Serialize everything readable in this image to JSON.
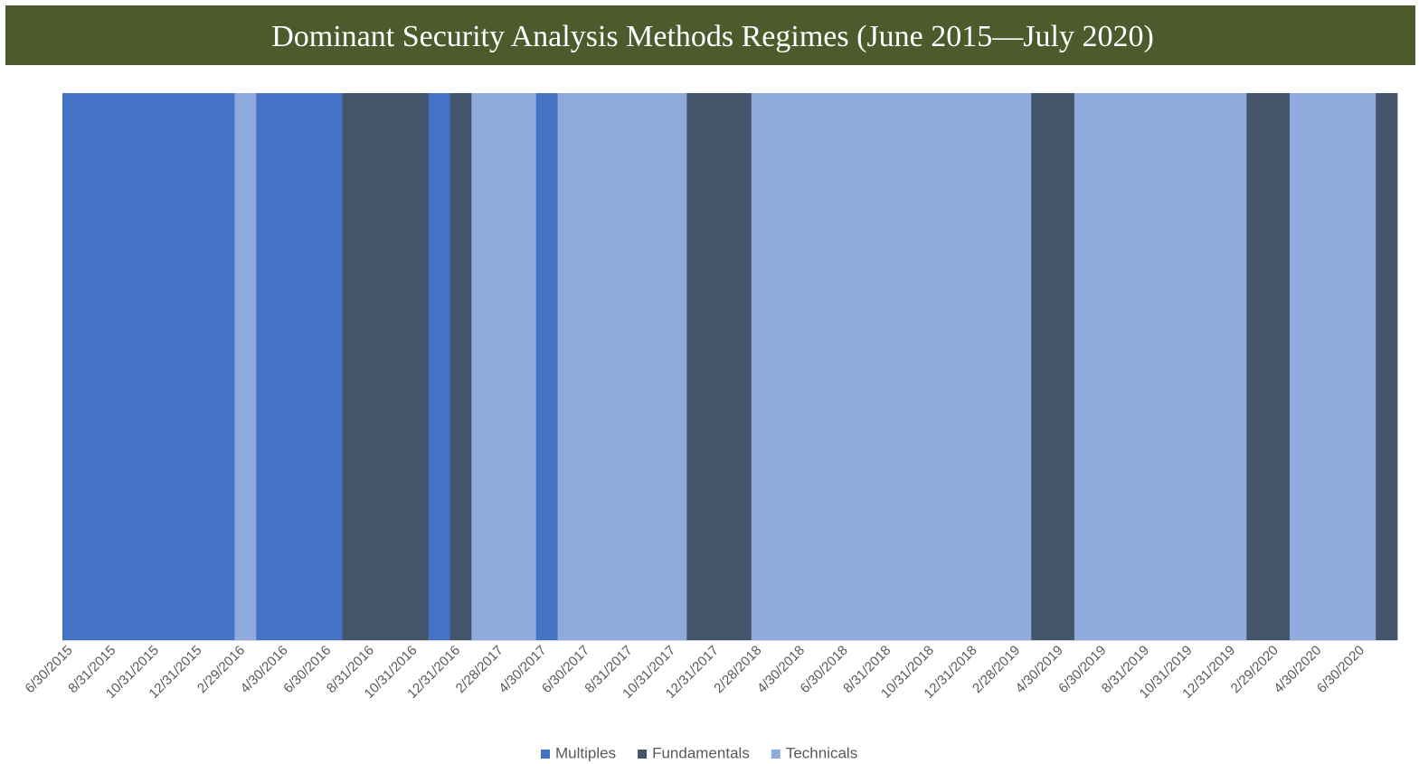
{
  "chart_data": {
    "type": "bar",
    "stacked": true,
    "title": "Dominant Security Analysis Methods Regimes (June 2015—July 2020)",
    "categories": [
      "6/30/2015",
      null,
      "8/31/2015",
      null,
      "10/31/2015",
      null,
      "12/31/2015",
      null,
      "2/29/2016",
      null,
      "4/30/2016",
      null,
      "6/30/2016",
      null,
      "8/31/2016",
      null,
      "10/31/2016",
      null,
      "12/31/2016",
      null,
      "2/28/2017",
      null,
      "4/30/2017",
      null,
      "6/30/2017",
      null,
      "8/31/2017",
      null,
      "10/31/2017",
      null,
      "12/31/2017",
      null,
      "2/28/2018",
      null,
      "4/30/2018",
      null,
      "6/30/2018",
      null,
      "8/31/2018",
      null,
      "10/31/2018",
      null,
      "12/31/2018",
      null,
      "2/28/2019",
      null,
      "4/30/2019",
      null,
      "6/30/2019",
      null,
      "8/31/2019",
      null,
      "10/31/2019",
      null,
      "12/31/2019",
      null,
      "2/29/2020",
      null,
      "4/30/2020",
      null,
      "6/30/2020",
      null
    ],
    "series": [
      {
        "name": "Multiples",
        "color": "#4472c4",
        "values": [
          100,
          100,
          100,
          100,
          100,
          100,
          100,
          100,
          0,
          100,
          100,
          100,
          100,
          0,
          0,
          0,
          0,
          100,
          0,
          0,
          0,
          0,
          100,
          0,
          0,
          0,
          0,
          0,
          0,
          0,
          0,
          0,
          0,
          0,
          0,
          0,
          0,
          0,
          0,
          0,
          0,
          0,
          0,
          0,
          0,
          0,
          0,
          0,
          0,
          0,
          0,
          0,
          0,
          0,
          0,
          0,
          0,
          0,
          0,
          0,
          0,
          0
        ]
      },
      {
        "name": "Fundamentals",
        "color": "#44546a",
        "values": [
          0,
          0,
          0,
          0,
          0,
          0,
          0,
          0,
          0,
          0,
          0,
          0,
          0,
          100,
          100,
          100,
          100,
          0,
          100,
          0,
          0,
          0,
          0,
          0,
          0,
          0,
          0,
          0,
          0,
          100,
          100,
          100,
          0,
          0,
          0,
          0,
          0,
          0,
          0,
          0,
          0,
          0,
          0,
          0,
          0,
          100,
          100,
          0,
          0,
          0,
          0,
          0,
          0,
          0,
          0,
          100,
          100,
          0,
          0,
          0,
          0,
          100
        ]
      },
      {
        "name": "Technicals",
        "color": "#8faadc",
        "values": [
          0,
          0,
          0,
          0,
          0,
          0,
          0,
          0,
          100,
          0,
          0,
          0,
          0,
          0,
          0,
          0,
          0,
          0,
          0,
          100,
          100,
          100,
          0,
          100,
          100,
          100,
          100,
          100,
          100,
          0,
          0,
          0,
          100,
          100,
          100,
          100,
          100,
          100,
          100,
          100,
          100,
          100,
          100,
          100,
          100,
          0,
          0,
          100,
          100,
          100,
          100,
          100,
          100,
          100,
          100,
          0,
          0,
          100,
          100,
          100,
          100,
          0
        ]
      }
    ],
    "ylim": [
      0,
      100
    ]
  }
}
